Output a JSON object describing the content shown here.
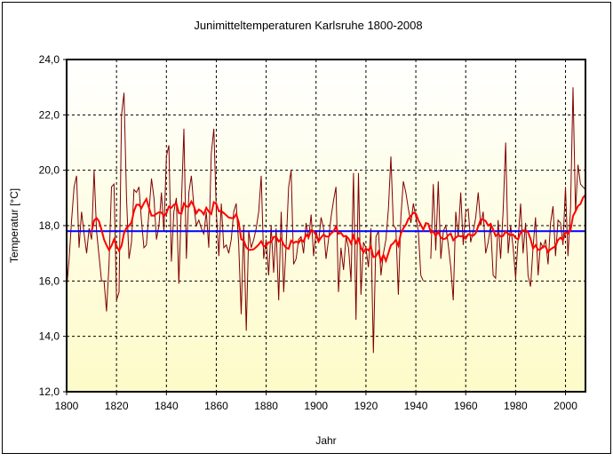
{
  "chart_data": {
    "type": "line",
    "title": "Junimitteltemperaturen Karlsruhe 1800-2008",
    "xlabel": "Jahr",
    "ylabel": "Temperatur [°C]",
    "xlim": [
      1800,
      2008
    ],
    "ylim": [
      12,
      24
    ],
    "x_ticks": [
      "1800",
      "1820",
      "1840",
      "1860",
      "1880",
      "1900",
      "1920",
      "1940",
      "1960",
      "1980",
      "2000"
    ],
    "y_ticks": [
      "12,0",
      "14,0",
      "16,0",
      "18,0",
      "20,0",
      "22,0",
      "24,0"
    ],
    "grid": true,
    "start_year": 1800,
    "mean_value": 17.8,
    "moving_average_window": 11,
    "colors": {
      "annual": "#800000",
      "moving_average": "#ff0000",
      "mean": "#0000ff",
      "bg_top": "#ffffff",
      "bg_bottom": "#fdfbc8"
    },
    "series": [
      {
        "name": "Junimittel",
        "values": [
          15.7,
          16.8,
          18.2,
          19.4,
          19.8,
          17.2,
          18.5,
          17.7,
          17.0,
          17.9,
          17.5,
          20.0,
          17.8,
          16.9,
          16.0,
          16.0,
          14.9,
          16.6,
          19.4,
          19.5,
          15.3,
          15.6,
          22.0,
          22.8,
          19.0,
          16.8,
          17.4,
          19.3,
          19.2,
          19.4,
          18.2,
          17.2,
          17.3,
          18.5,
          19.7,
          19.0,
          17.5,
          18.0,
          19.2,
          17.8,
          20.5,
          20.9,
          16.7,
          18.5,
          19.0,
          15.9,
          18.8,
          21.5,
          16.8,
          19.2,
          19.8,
          18.7,
          18.0,
          18.2,
          17.9,
          17.7,
          18.5,
          17.2,
          20.6,
          21.5,
          18.5,
          16.9,
          18.8,
          17.2,
          17.3,
          17.0,
          17.5,
          18.5,
          18.8,
          17.3,
          14.8,
          18.0,
          14.2,
          17.8,
          17.2,
          17.5,
          17.9,
          18.5,
          19.8,
          16.8,
          17.5,
          16.2,
          18.0,
          16.3,
          17.9,
          15.3,
          18.5,
          15.6,
          17.3,
          19.4,
          20.0,
          16.6,
          16.8,
          17.5,
          17.6,
          17.0,
          18.1,
          17.5,
          18.4,
          16.9,
          17.8,
          17.4,
          18.3,
          17.9,
          16.8,
          17.5,
          18.3,
          18.9,
          19.4,
          15.6,
          17.2,
          16.4,
          17.6,
          17.2,
          16.0,
          19.9,
          14.6,
          19.9,
          15.5,
          17.4,
          17.2,
          16.5,
          17.9,
          13.4,
          17.6,
          17.8,
          16.2,
          17.0,
          17.5,
          18.6,
          20.5,
          18.0,
          17.9,
          15.5,
          18.3,
          19.6,
          19.2,
          18.6,
          18.1,
          18.8,
          18.3,
          17.8,
          16.2,
          16.0,
          null,
          null,
          16.8,
          19.5,
          17.1,
          19.6,
          16.8,
          17.8,
          18.0,
          17.3,
          16.5,
          15.3,
          18.5,
          17.6,
          19.2,
          17.3,
          18.5,
          18.6,
          17.4,
          17.8,
          18.3,
          19.2,
          18.0,
          18.5,
          17.0,
          17.4,
          18.0,
          16.2,
          16.1,
          18.2,
          16.8,
          18.5,
          21.0,
          17.0,
          18.0,
          17.2,
          16.1,
          17.5,
          18.8,
          17.0,
          18.1,
          16.2,
          15.8,
          17.2,
          18.3,
          16.2,
          17.4,
          17.2,
          17.5,
          16.6,
          18.1,
          18.7,
          16.9,
          18.2,
          18.1,
          17.3,
          19.4,
          16.9,
          18.6,
          23.0,
          18.5,
          20.2,
          19.5,
          19.4,
          19.3
        ]
      }
    ]
  }
}
